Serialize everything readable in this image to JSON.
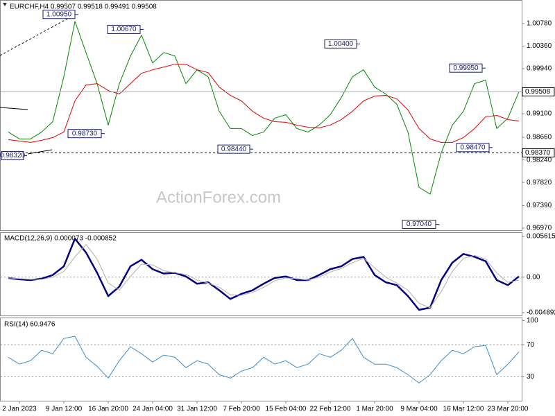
{
  "chart_data": [
    {
      "type": "line",
      "title": "EURCHF,H4  0.99507 0.99518 0.99491 0.99508",
      "watermark": "ActionForex.com",
      "categories": [
        null,
        "2 Jan 2023",
        null,
        null,
        null,
        "9 Jan 12:00",
        null,
        null,
        null,
        "16 Jan 20:00",
        null,
        null,
        null,
        "24 Jan 04:00",
        null,
        null,
        null,
        "31 Jan 12:00",
        null,
        null,
        null,
        "7 Feb 20:00",
        null,
        null,
        null,
        "15 Feb 04:00",
        null,
        null,
        null,
        "22 Feb 12:00",
        null,
        null,
        null,
        "1 Mar 20:00",
        null,
        null,
        null,
        "9 Mar 04:00",
        null,
        null,
        null,
        "16 Mar 12:00",
        null,
        null,
        null,
        "23 Mar 20:00",
        null
      ],
      "series": [
        {
          "color": "#008800",
          "values": [
            0.98759,
            0.98631,
            0.98631,
            0.98759,
            0.98952,
            0.99789,
            1.00819,
            1.00239,
            0.9966,
            0.98888,
            0.9966,
            1.00175,
            1.00561,
            1.00046,
            1.00239,
            1.00175,
            0.9966,
            0.99918,
            0.99789,
            0.99145,
            0.98824,
            0.98824,
            0.98695,
            0.98759,
            0.99017,
            0.99081,
            0.98824,
            0.98759,
            0.98888,
            0.99081,
            0.99403,
            0.99789,
            0.99918,
            0.99596,
            0.99467,
            0.99274,
            0.98759,
            0.9773,
            0.97601,
            0.98373,
            0.98888,
            0.99145,
            0.9966,
            0.99725,
            0.98824,
            0.99017,
            0.99508
          ]
        },
        {
          "color": "#e00000",
          "values": [
            0.98618,
            0.98592,
            0.98566,
            0.98605,
            0.98656,
            0.98759,
            0.99339,
            0.99635,
            0.9966,
            0.99532,
            0.99467,
            0.9966,
            0.99853,
            0.99918,
            0.99969,
            1.00021,
            1.00021,
            0.99918,
            0.99866,
            0.99596,
            0.99442,
            0.99339,
            0.99145,
            0.99017,
            0.98952,
            0.9894,
            0.98888,
            0.98849,
            0.98837,
            0.98888,
            0.98991,
            0.99145,
            0.99339,
            0.99429,
            0.99442,
            0.99377,
            0.99171,
            0.98824,
            0.98631,
            0.98566,
            0.98566,
            0.98656,
            0.98824,
            0.99043,
            0.99068,
            0.98991,
            0.98965
          ]
        }
      ],
      "ylim": [
        0.96931,
        1.01205
      ],
      "yticks": [
        {
          "value": 1.0078,
          "label": "1.00780"
        },
        {
          "value": 1.0036,
          "label": "1.00360"
        },
        {
          "value": 0.9994,
          "label": "0.99940"
        },
        {
          "value": 0.991,
          "label": "0.99100"
        },
        {
          "value": 0.9866,
          "label": "0.98660"
        },
        {
          "value": 0.9824,
          "label": "0.98240"
        },
        {
          "value": 0.9782,
          "label": "0.97820"
        },
        {
          "value": 0.9739,
          "label": "0.97390"
        },
        {
          "value": 0.9697,
          "label": "0.96970"
        }
      ],
      "last_price": {
        "value": 0.99508,
        "label": "0.99508"
      },
      "support_line": {
        "value": 0.9837,
        "label": "0.98370"
      },
      "annotations": [
        {
          "value": 1.0095,
          "label": "1.00950"
        },
        {
          "value": 1.0067,
          "label": "1.00670"
        },
        {
          "value": 0.9873,
          "label": "0.98730"
        },
        {
          "value": 0.9844,
          "label": "0.98440"
        },
        {
          "value": 1.004,
          "label": "1.00400"
        },
        {
          "value": 0.9704,
          "label": "0.97040"
        },
        {
          "value": 0.9995,
          "label": "0.99950"
        },
        {
          "value": 0.9847,
          "label": "0.98470"
        },
        {
          "value": 0.9832,
          "label": "0.98320"
        }
      ]
    },
    {
      "type": "line",
      "title": "MACD(12,26,9) 0.000073 -0.000852",
      "series": [
        {
          "color": "#000080",
          "values": [
            -0.0001,
            -0.0003,
            -0.0004,
            -0.0002,
            0.0003,
            0.0015,
            0.0053,
            0.0034,
            0.0006,
            -0.0026,
            -0.0013,
            0.0015,
            0.0024,
            0.0011,
            0.0005,
            0.0006,
            0.0001,
            -0.0009,
            -0.0007,
            -0.0018,
            -0.003,
            -0.0023,
            -0.0018,
            -0.0009,
            -0.0001,
            0.0001,
            -0.0004,
            -0.0004,
            0.0003,
            0.0011,
            0.0015,
            0.0025,
            0.0028,
            0.0003,
            -0.0007,
            -0.0011,
            -0.0026,
            -0.0045,
            -0.0042,
            -0.0004,
            0.002,
            0.0032,
            0.0028,
            0.0022,
            -0.0004,
            -0.0011,
            0.0001
          ]
        },
        {
          "color": "#b0b0b0",
          "values": [
            -0.0001,
            -0.0002,
            -0.0003,
            -0.0003,
            0,
            0.0008,
            0.0028,
            0.0045,
            0.0025,
            -0.0008,
            -0.0018,
            0.0001,
            0.0018,
            0.0017,
            0.0009,
            0.0006,
            0.0004,
            -0.0004,
            -0.0008,
            -0.0014,
            -0.0024,
            -0.0025,
            -0.0021,
            -0.0014,
            -0.0005,
            -0.0001,
            -0.0002,
            -0.0004,
            0,
            0.0007,
            0.0012,
            0.002,
            0.0026,
            0.0013,
            0,
            -0.0008,
            -0.0018,
            -0.0036,
            -0.0042,
            -0.002,
            0.0008,
            0.0026,
            0.003,
            0.0025,
            0.0006,
            -0.0007,
            -0.0004
          ]
        }
      ],
      "ylim": [
        -0.005274,
        0.006093
      ],
      "yticks": [
        0.005615,
        {
          "value": 0,
          "label": "0.00"
        },
        -0.004892
      ],
      "levels": [
        0
      ]
    },
    {
      "type": "line",
      "title": "RSI(14) 60.9476",
      "series": [
        {
          "color": "#3a8dd0",
          "values": [
            54.3,
            45.7,
            50,
            63,
            58.7,
            77.8,
            80.4,
            54.3,
            43,
            28.3,
            50,
            67.4,
            58.7,
            48.3,
            57,
            54.3,
            41.3,
            50,
            45.7,
            32.6,
            28.3,
            37,
            41.3,
            54.3,
            45.7,
            50,
            41.3,
            45.7,
            58.7,
            54.3,
            63,
            77.8,
            54.3,
            45.7,
            45.7,
            41.3,
            32.6,
            22.2,
            32.6,
            50,
            63,
            58.7,
            67.4,
            69.1,
            32.6,
            45.7,
            60.9
          ]
        }
      ],
      "ylim": [
        0,
        103
      ],
      "yticks": [
        100,
        70,
        30
      ],
      "levels": [
        70,
        30
      ]
    }
  ]
}
